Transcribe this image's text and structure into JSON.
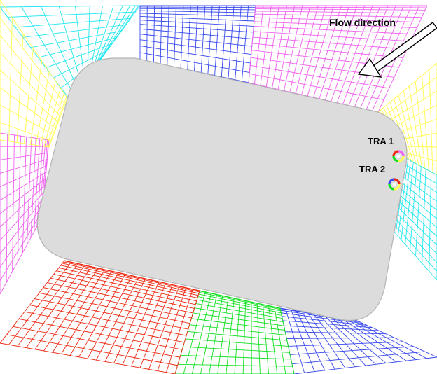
{
  "annotations": {
    "flow_direction": "Flow direction",
    "tra1": "TRA 1",
    "tra2": "TRA 2"
  },
  "colors": {
    "background": "#ffffff",
    "body_fill": "#dcdcdc",
    "body_stroke": "#b4b4b4",
    "cyan": "#20e8f0",
    "blue": "#3848ee",
    "magenta": "#f060f0",
    "yellow": "#ffff50",
    "red": "#ee2810",
    "green": "#10e020",
    "arrow": "#000000"
  },
  "mesh_blocks": [
    {
      "id": "top-left",
      "color": "cyan"
    },
    {
      "id": "top-center",
      "color": "blue"
    },
    {
      "id": "top-right",
      "color": "magenta"
    },
    {
      "id": "right-upper",
      "color": "yellow"
    },
    {
      "id": "right-lower",
      "color": "cyan"
    },
    {
      "id": "bottom-right",
      "color": "blue"
    },
    {
      "id": "bottom-center",
      "color": "green"
    },
    {
      "id": "bottom-left",
      "color": "red"
    },
    {
      "id": "left-lower",
      "color": "magenta"
    },
    {
      "id": "left-upper",
      "color": "yellow"
    }
  ],
  "probes": [
    {
      "id": "tra1",
      "colors": [
        "magenta",
        "yellow",
        "green",
        "red"
      ]
    },
    {
      "id": "tra2",
      "colors": [
        "red",
        "yellow",
        "green",
        "blue"
      ]
    }
  ]
}
